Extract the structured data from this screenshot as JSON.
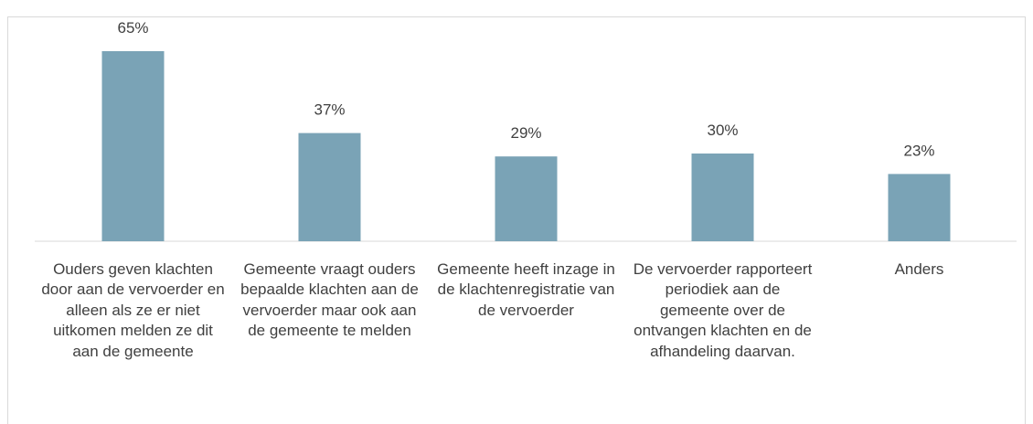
{
  "chart_data": {
    "type": "bar",
    "categories": [
      "Ouders geven klachten door aan de vervoerder en alleen als ze er niet uitkomen melden ze dit aan de gemeente",
      "Gemeente vraagt ouders bepaalde klachten aan de vervoerder maar ook aan de gemeente te melden",
      "Gemeente heeft inzage in de klachtenregistratie van de vervoerder",
      "De vervoerder rapporteert periodiek aan de gemeente over de ontvangen klachten en de afhandeling daarvan.",
      "Anders"
    ],
    "values": [
      65,
      37,
      29,
      30,
      23
    ],
    "value_labels": [
      "65%",
      "37%",
      "29%",
      "30%",
      "23%"
    ],
    "color": "#7aa3b6"
  }
}
